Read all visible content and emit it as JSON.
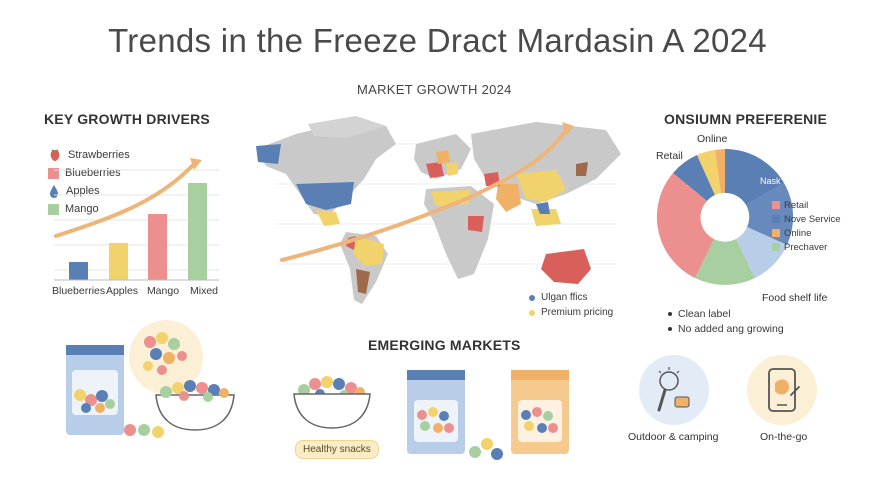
{
  "title": "Trends in the Freeze Dract Mardasin A 2024",
  "key_drivers": {
    "heading": "KEY GROWTH DRIVERS",
    "legend": [
      "Strawberries",
      "Blueberries",
      "Apples",
      "Mango"
    ],
    "bars": [
      "Blueberries",
      "Apples",
      "Mango",
      "Mixed"
    ]
  },
  "market_growth": {
    "heading": "MARKET GROWTH 2024",
    "legend": [
      "Ulgan ffics",
      "Premium pricing"
    ]
  },
  "consumer_pref": {
    "heading": "ONSIUMN PREFERENIE",
    "labels": {
      "retail": "Retail",
      "online": "Online",
      "nask": "Nask",
      "food_shelf": "Food shelf life"
    },
    "legend": [
      "Retail",
      "Nove Service",
      "Online",
      "Prechaver"
    ],
    "bullets": [
      "Clean label",
      "No added ang growing"
    ]
  },
  "emerging": {
    "heading": "EMERGING MARKETS",
    "badge": "Healthy snacks"
  },
  "icons": {
    "outdoor": "Outdoor & camping",
    "onthego": "On-the-go"
  },
  "colors": {
    "blue": "#5a7fb5",
    "yellow": "#f2d36b",
    "pink": "#ec8f8f",
    "green": "#a8cf9f",
    "orange": "#f0b066",
    "lightblue": "#b8cde8"
  }
}
